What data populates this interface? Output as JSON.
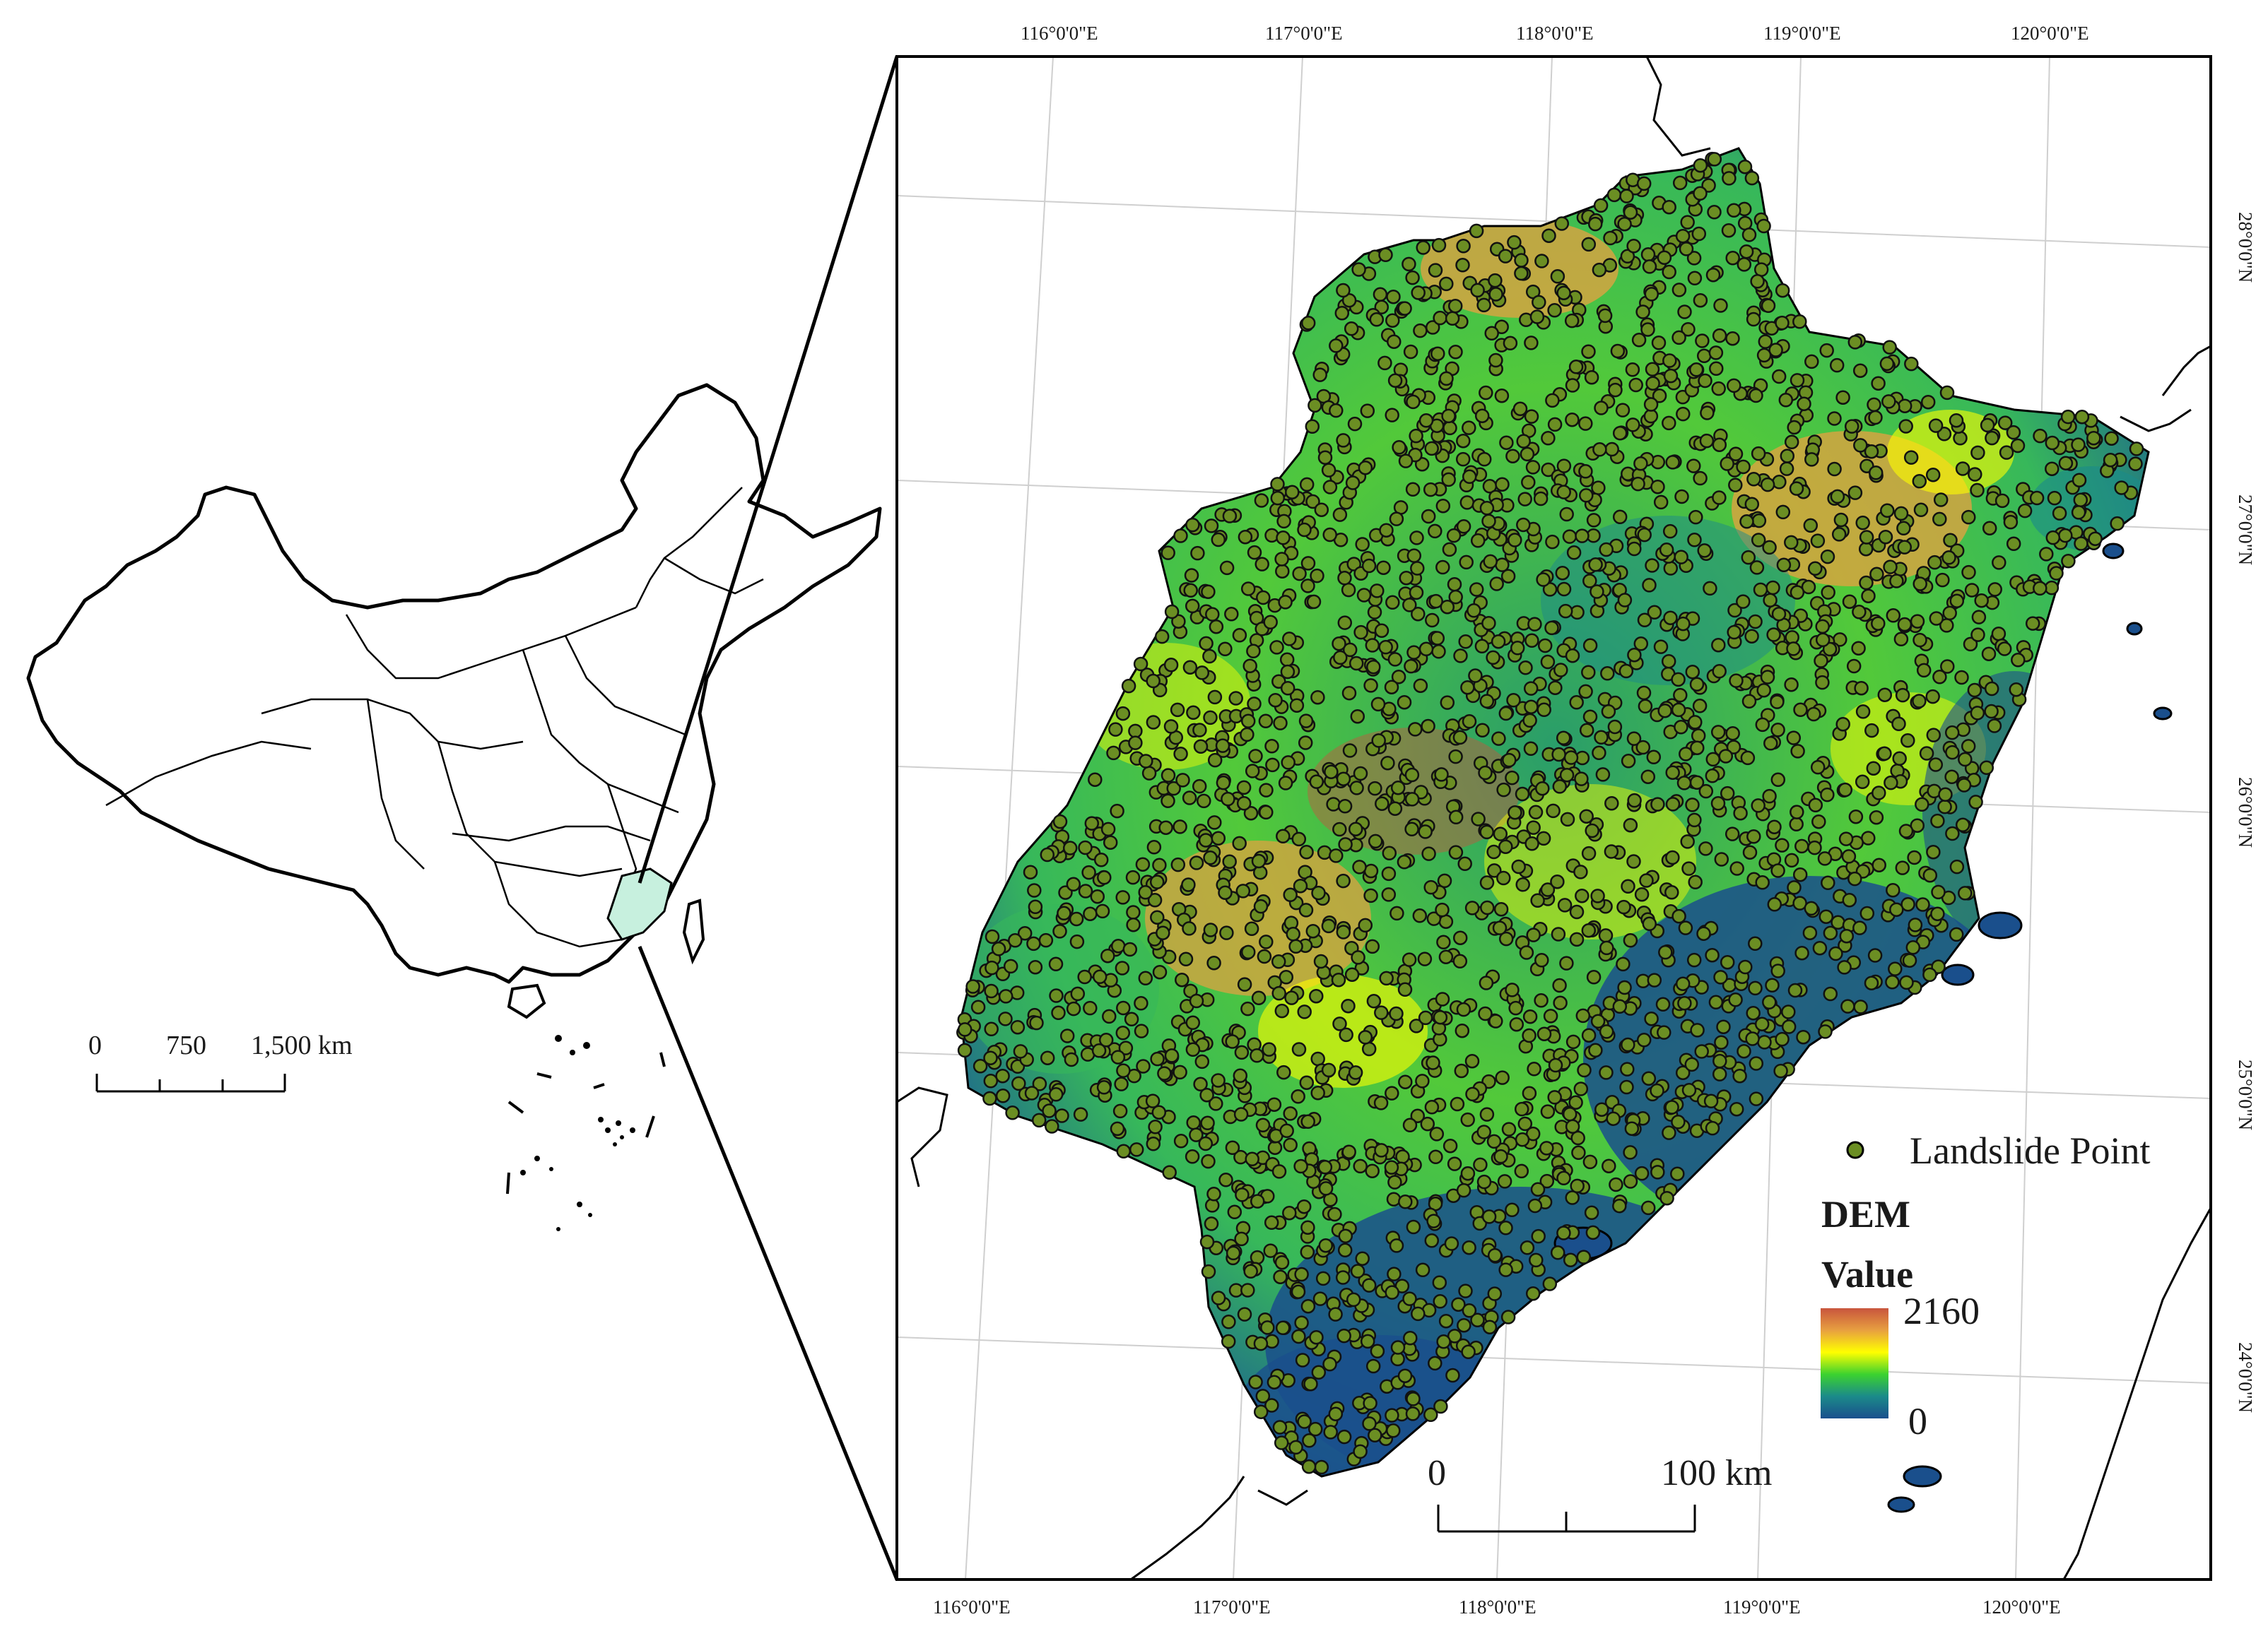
{
  "overview_map": {
    "scale_bar": {
      "labels": [
        "0",
        "750",
        "1,500 km"
      ]
    }
  },
  "main_map": {
    "top_lon_labels": [
      "116°0'0\"E",
      "117°0'0\"E",
      "118°0'0\"E",
      "119°0'0\"E",
      "120°0'0\"E"
    ],
    "bottom_lon_labels": [
      "116°0'0\"E",
      "117°0'0\"E",
      "118°0'0\"E",
      "119°0'0\"E",
      "120°0'0\"E"
    ],
    "right_lat_labels": [
      "28°0'0\"N",
      "27°0'0\"N",
      "26°0'0\"N",
      "25°0'0\"N",
      "24°0'0\"N"
    ],
    "scale_bar": {
      "start": "0",
      "end": "100 km"
    }
  },
  "legend": {
    "point_label": "Landslide Point",
    "point_color": "#6b8e23",
    "dem_title": "DEM",
    "value_title": "Value",
    "max": "2160",
    "min": "0",
    "ramp_colors": [
      "#c8553d",
      "#e8a040",
      "#ffff00",
      "#3cd22f",
      "#1b8a8a",
      "#1a4f8c"
    ]
  }
}
